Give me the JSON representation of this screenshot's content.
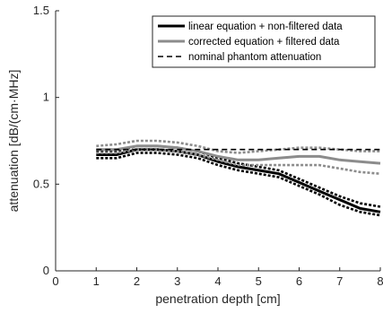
{
  "chart_data": {
    "type": "line",
    "title": "",
    "xlabel": "penetration depth [cm]",
    "ylabel": "attenuation [dB/(cm·MHz]",
    "xlim": [
      0,
      8
    ],
    "ylim": [
      0,
      1.5
    ],
    "xticks": [
      "0",
      "1",
      "2",
      "3",
      "4",
      "5",
      "6",
      "7",
      "8"
    ],
    "yticks": [
      "0",
      "0.5",
      "1",
      "1.5"
    ],
    "legend_position": "top-right",
    "grid": false,
    "series": [
      {
        "name": "linear equation + non-filtered data",
        "color": "#000000",
        "style": "solid",
        "x": [
          1.0,
          1.5,
          2.0,
          2.5,
          3.0,
          3.5,
          4.0,
          4.5,
          5.0,
          5.5,
          6.0,
          6.5,
          7.0,
          7.5,
          8.0
        ],
        "y": [
          0.67,
          0.67,
          0.7,
          0.7,
          0.69,
          0.67,
          0.63,
          0.6,
          0.58,
          0.56,
          0.51,
          0.46,
          0.41,
          0.36,
          0.34
        ]
      },
      {
        "name": "linear equation + non-filtered data (upper bound)",
        "color": "#000000",
        "style": "dotted",
        "x": [
          1.0,
          1.5,
          2.0,
          2.5,
          3.0,
          3.5,
          4.0,
          4.5,
          5.0,
          5.5,
          6.0,
          6.5,
          7.0,
          7.5,
          8.0
        ],
        "y": [
          0.69,
          0.69,
          0.72,
          0.72,
          0.71,
          0.69,
          0.65,
          0.62,
          0.6,
          0.58,
          0.53,
          0.48,
          0.43,
          0.39,
          0.37
        ]
      },
      {
        "name": "linear equation + non-filtered data (lower bound)",
        "color": "#000000",
        "style": "dotted",
        "x": [
          1.0,
          1.5,
          2.0,
          2.5,
          3.0,
          3.5,
          4.0,
          4.5,
          5.0,
          5.5,
          6.0,
          6.5,
          7.0,
          7.5,
          8.0
        ],
        "y": [
          0.65,
          0.65,
          0.68,
          0.68,
          0.67,
          0.65,
          0.61,
          0.58,
          0.56,
          0.54,
          0.49,
          0.44,
          0.38,
          0.34,
          0.32
        ]
      },
      {
        "name": "corrected equation + filtered data",
        "color": "#8c8c8c",
        "style": "solid",
        "x": [
          1.0,
          1.5,
          2.0,
          2.5,
          3.0,
          3.5,
          4.0,
          4.5,
          5.0,
          5.5,
          6.0,
          6.5,
          7.0,
          7.5,
          8.0
        ],
        "y": [
          0.7,
          0.7,
          0.72,
          0.72,
          0.71,
          0.69,
          0.66,
          0.64,
          0.64,
          0.65,
          0.66,
          0.66,
          0.64,
          0.63,
          0.62
        ]
      },
      {
        "name": "corrected equation + filtered data (upper bound)",
        "color": "#8c8c8c",
        "style": "dotted",
        "x": [
          1.0,
          1.5,
          2.0,
          2.5,
          3.0,
          3.5,
          4.0,
          4.5,
          5.0,
          5.5,
          6.0,
          6.5,
          7.0,
          7.5,
          8.0
        ],
        "y": [
          0.72,
          0.73,
          0.75,
          0.75,
          0.74,
          0.72,
          0.69,
          0.68,
          0.69,
          0.7,
          0.71,
          0.71,
          0.7,
          0.69,
          0.69
        ]
      },
      {
        "name": "corrected equation + filtered data (lower bound)",
        "color": "#8c8c8c",
        "style": "dotted",
        "x": [
          1.0,
          1.5,
          2.0,
          2.5,
          3.0,
          3.5,
          4.0,
          4.5,
          5.0,
          5.5,
          6.0,
          6.5,
          7.0,
          7.5,
          8.0
        ],
        "y": [
          0.68,
          0.68,
          0.7,
          0.7,
          0.69,
          0.67,
          0.64,
          0.61,
          0.61,
          0.61,
          0.61,
          0.61,
          0.59,
          0.57,
          0.56
        ]
      },
      {
        "name": "nominal phantom attenuation",
        "color": "#000000",
        "style": "dashed",
        "x": [
          1.0,
          8.0
        ],
        "y": [
          0.7,
          0.7
        ]
      }
    ],
    "legend": [
      {
        "label": "linear equation + non-filtered data",
        "color": "#000000",
        "style": "solid"
      },
      {
        "label": "corrected equation + filtered data",
        "color": "#8c8c8c",
        "style": "solid"
      },
      {
        "label": "nominal phantom attenuation",
        "color": "#000000",
        "style": "dashed"
      }
    ]
  }
}
